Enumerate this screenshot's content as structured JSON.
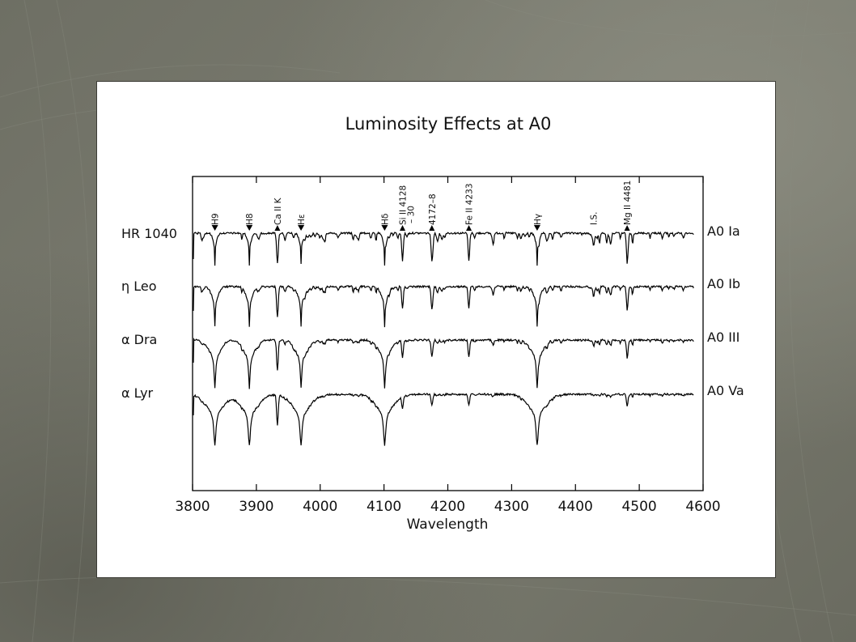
{
  "chart_data": {
    "type": "line",
    "title": "Luminosity Effects at A0",
    "xlabel": "Wavelength",
    "ylabel": "",
    "xlim": [
      3800,
      4600
    ],
    "x_ticks": [
      3800,
      3900,
      4000,
      4100,
      4200,
      4300,
      4400,
      4500,
      4600
    ],
    "grid": false,
    "legend": "none",
    "line_color": "#000000",
    "series": [
      {
        "name": "HR 1040",
        "class": "A0 Ia",
        "width_scale": 0.35,
        "depth_scale": 0.62
      },
      {
        "name": "η Leo",
        "class": "A0 Ib",
        "width_scale": 0.6,
        "depth_scale": 0.78
      },
      {
        "name": "α Dra",
        "class": "A0 III",
        "width_scale": 1.0,
        "depth_scale": 0.95
      },
      {
        "name": "α Lyr",
        "class": "A0 Va",
        "width_scale": 1.55,
        "depth_scale": 1.0
      }
    ],
    "lines": [
      {
        "label": "H9",
        "wavelength": 3835,
        "type": "balmer"
      },
      {
        "label": "H8",
        "wavelength": 3889,
        "type": "balmer"
      },
      {
        "label": "Ca II K",
        "wavelength": 3933,
        "type": "metal"
      },
      {
        "label": "Hε",
        "wavelength": 3970,
        "type": "balmer"
      },
      {
        "label": "Hδ",
        "wavelength": 4101,
        "type": "balmer"
      },
      {
        "label": "Si II 4128\n– 30",
        "wavelength": 4129,
        "type": "metal"
      },
      {
        "label": "4172–8",
        "wavelength": 4175,
        "type": "metal"
      },
      {
        "label": "Fe II 4233",
        "wavelength": 4233,
        "type": "metal"
      },
      {
        "label": "Hγ",
        "wavelength": 4340,
        "type": "balmer"
      },
      {
        "label": "I.S.",
        "wavelength": 4428,
        "type": "interstellar"
      },
      {
        "label": "Mg II 4481",
        "wavelength": 4481,
        "type": "metal"
      }
    ],
    "annotations": [
      "H9",
      "H8",
      "Ca II K",
      "Hε",
      "Hδ",
      "Si II 4128",
      "– 30",
      "4172–8",
      "Fe II 4233",
      "Hγ",
      "I.S.",
      "Mg II 4481"
    ]
  }
}
